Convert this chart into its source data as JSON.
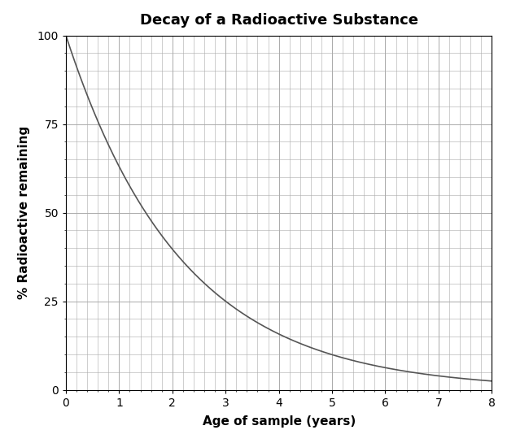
{
  "title": "Decay of a Radioactive Substance",
  "xlabel": "Age of sample (years)",
  "ylabel": "% Radioactive remaining",
  "xlim": [
    0,
    8
  ],
  "ylim": [
    0,
    100
  ],
  "x_ticks": [
    0,
    1,
    2,
    3,
    4,
    5,
    6,
    7,
    8
  ],
  "y_ticks": [
    0,
    25,
    50,
    75,
    100
  ],
  "half_life": 1.5,
  "grid_color": "#aaaaaa",
  "line_color": "#555555",
  "background_color": "#ffffff",
  "title_fontsize": 13,
  "label_fontsize": 11,
  "tick_fontsize": 10,
  "line_width": 1.2
}
